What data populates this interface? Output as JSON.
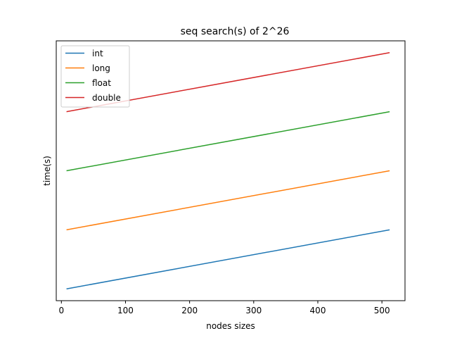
{
  "chart_data": {
    "type": "line",
    "title": "seq search(s) of 2^26",
    "xlabel": "nodes sizes",
    "ylabel": "time(s)",
    "xlim": [
      -8,
      536
    ],
    "ylim": [
      -0.2,
      4.2
    ],
    "x_ticks": [
      0,
      100,
      200,
      300,
      400,
      500
    ],
    "y_ticks": [],
    "grid": false,
    "legend_position": "top-left",
    "x": [
      8,
      512
    ],
    "series": [
      {
        "name": "int",
        "color": "#1f77b4",
        "values": [
          0.0,
          1.0
        ]
      },
      {
        "name": "long",
        "color": "#ff7f0e",
        "values": [
          1.0,
          2.0
        ]
      },
      {
        "name": "float",
        "color": "#2ca02c",
        "values": [
          2.0,
          3.0
        ]
      },
      {
        "name": "double",
        "color": "#d62728",
        "values": [
          3.0,
          4.0
        ]
      }
    ]
  }
}
